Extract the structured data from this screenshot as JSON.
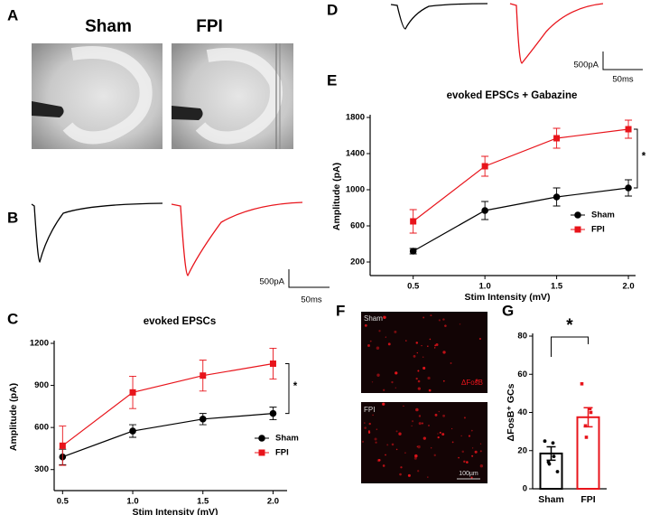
{
  "letters": [
    "A",
    "B",
    "C",
    "D",
    "E",
    "F",
    "G"
  ],
  "panel_A": {
    "labels": [
      "Sham",
      "FPI"
    ]
  },
  "scale_bars": [
    {
      "current": "500pA",
      "time": "50ms"
    },
    {
      "current": "500pA",
      "time": "50ms"
    }
  ],
  "panel_F": {
    "labels": [
      "Sham",
      "FPI"
    ],
    "stain": "ΔFosB",
    "scale": "100µm"
  },
  "chart_data": [
    {
      "type": "line",
      "title": "evoked EPSCs",
      "xlabel": "Stim Intensity (mV)",
      "ylabel": "Amplitude (pA)",
      "x": [
        0.5,
        1,
        1.5,
        2
      ],
      "series": [
        {
          "name": "Sham",
          "color": "#000000",
          "marker": "circle",
          "values": [
            390,
            575,
            660,
            700
          ],
          "errors": [
            55,
            45,
            40,
            45
          ]
        },
        {
          "name": "FPI",
          "color": "#e8141b",
          "marker": "square",
          "values": [
            470,
            850,
            970,
            1055
          ],
          "errors": [
            140,
            115,
            110,
            110
          ]
        }
      ],
      "xlim": [
        0.44,
        2.1
      ],
      "xticks": [
        0.5,
        {
          "value": 1,
          "label": "1.0"
        },
        1.5,
        {
          "value": 2,
          "label": "2.0"
        }
      ],
      "ylim": [
        150,
        1200
      ],
      "yticks": [
        300,
        600,
        900,
        1200
      ],
      "annotation": "*",
      "legend": "lower right"
    },
    {
      "type": "line",
      "title": "evoked EPSCs + Gabazine",
      "xlabel": "Stim Intensity (mV)",
      "ylabel": "Amplitude (pA)",
      "x": [
        0.5,
        1,
        1.5,
        2
      ],
      "series": [
        {
          "name": "Sham",
          "color": "#000000",
          "marker": "circle",
          "values": [
            320,
            770,
            920,
            1020
          ],
          "errors": [
            30,
            100,
            100,
            90
          ]
        },
        {
          "name": "FPI",
          "color": "#e8141b",
          "marker": "square",
          "values": [
            650,
            1260,
            1570,
            1670
          ],
          "errors": [
            130,
            110,
            110,
            100
          ]
        }
      ],
      "xlim": [
        0.2,
        2.05
      ],
      "xticks": [
        0.5,
        {
          "value": 1,
          "label": "1.0"
        },
        1.5,
        {
          "value": 2,
          "label": "2.0"
        }
      ],
      "ylim": [
        50,
        1800
      ],
      "yticks": [
        200,
        600,
        1000,
        1400,
        1800
      ],
      "annotation": "*",
      "legend": "lower right"
    },
    {
      "type": "bar",
      "ylabel": "ΔFosB⁺ GCs",
      "categories": [
        "Sham",
        "FPI"
      ],
      "values": [
        18.5,
        37.5
      ],
      "errors": [
        3.5,
        5
      ],
      "colors": [
        "#000000",
        "#e8141b"
      ],
      "points": [
        [
          25,
          24,
          17,
          14,
          13,
          9
        ],
        [
          55,
          42,
          40,
          33,
          27
        ]
      ],
      "ylim": [
        0,
        80
      ],
      "yticks": [
        0,
        20,
        40,
        60,
        80
      ],
      "annotation": "*"
    }
  ]
}
